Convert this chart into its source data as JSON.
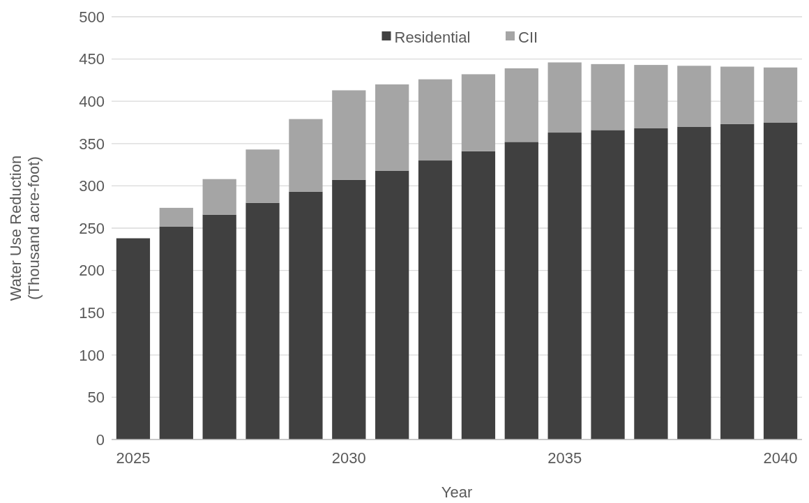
{
  "chart_data": {
    "type": "bar",
    "stacked": true,
    "xlabel": "Year",
    "ylabel": "Water Use Reduction\n(Thousand acre-foot)",
    "categories": [
      "2025",
      null,
      null,
      null,
      null,
      "2030",
      null,
      null,
      null,
      null,
      "2035",
      null,
      null,
      null,
      null,
      "2040"
    ],
    "series": [
      {
        "name": "Residential",
        "color": "#404040",
        "values": [
          238,
          252,
          266,
          280,
          293,
          307,
          318,
          330,
          341,
          352,
          363,
          366,
          368,
          370,
          373,
          375
        ]
      },
      {
        "name": "CII",
        "color": "#a5a5a5",
        "values": [
          0,
          22,
          42,
          63,
          86,
          106,
          102,
          96,
          91,
          87,
          83,
          78,
          75,
          72,
          68,
          65
        ]
      }
    ],
    "ylim": [
      0,
      500
    ],
    "yticks": [
      0,
      50,
      100,
      150,
      200,
      250,
      300,
      350,
      400,
      450,
      500
    ],
    "grid": "y",
    "legend": "top"
  }
}
